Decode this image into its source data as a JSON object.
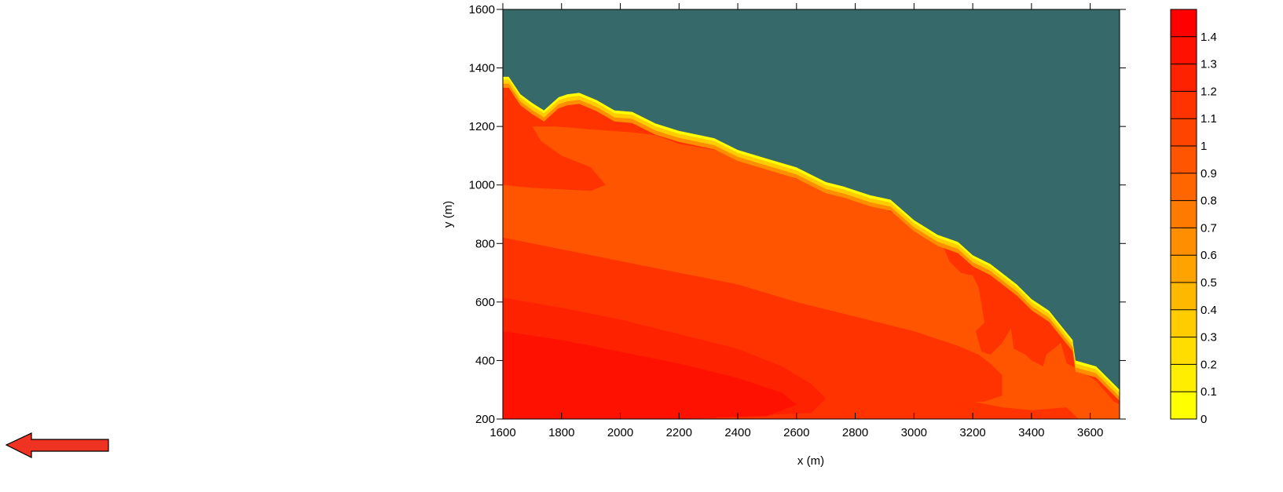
{
  "chart_data": {
    "type": "heatmap",
    "title": "",
    "xlabel": "x (m)",
    "ylabel": "y (m)",
    "xlim": [
      1600,
      3700
    ],
    "ylim": [
      200,
      1600
    ],
    "x_ticks": [
      1600,
      1800,
      2000,
      2200,
      2400,
      2600,
      2800,
      3000,
      3200,
      3400,
      3600
    ],
    "y_ticks": [
      200,
      400,
      600,
      800,
      1000,
      1200,
      1400,
      1600
    ],
    "land_color": "#35696a",
    "colorbar": {
      "min": 0,
      "max": 1.5,
      "levels": [
        0,
        0.1,
        0.2,
        0.3,
        0.4,
        0.5,
        0.6,
        0.7,
        0.8,
        0.9,
        1,
        1.1,
        1.2,
        1.3,
        1.4
      ],
      "tick_labels": [
        "0",
        "0.1",
        "0.2",
        "0.3",
        "0.4",
        "0.5",
        "0.6",
        "0.7",
        "0.8",
        "0.9",
        "1",
        "1.1",
        "1.2",
        "1.3",
        "1.4"
      ],
      "colors": [
        "#ffff00",
        "#ffee00",
        "#ffdd00",
        "#ffcc00",
        "#ffb800",
        "#ffa300",
        "#ff8e00",
        "#ff7a00",
        "#ff6600",
        "#ff5500",
        "#ff4400",
        "#ff3300",
        "#ff2200",
        "#ff1100",
        "#ff0000"
      ]
    },
    "shoreline": [
      [
        1600,
        1370
      ],
      [
        1620,
        1370
      ],
      [
        1660,
        1310
      ],
      [
        1700,
        1280
      ],
      [
        1740,
        1255
      ],
      [
        1790,
        1300
      ],
      [
        1820,
        1310
      ],
      [
        1860,
        1315
      ],
      [
        1920,
        1290
      ],
      [
        1980,
        1255
      ],
      [
        2040,
        1250
      ],
      [
        2120,
        1210
      ],
      [
        2200,
        1185
      ],
      [
        2320,
        1160
      ],
      [
        2400,
        1120
      ],
      [
        2500,
        1090
      ],
      [
        2600,
        1060
      ],
      [
        2700,
        1010
      ],
      [
        2760,
        995
      ],
      [
        2850,
        965
      ],
      [
        2920,
        950
      ],
      [
        3000,
        880
      ],
      [
        3080,
        830
      ],
      [
        3150,
        805
      ],
      [
        3200,
        760
      ],
      [
        3260,
        730
      ],
      [
        3350,
        660
      ],
      [
        3400,
        610
      ],
      [
        3460,
        570
      ],
      [
        3500,
        520
      ],
      [
        3540,
        470
      ],
      [
        3550,
        400
      ],
      [
        3620,
        380
      ],
      [
        3700,
        300
      ],
      [
        3700,
        1600
      ],
      [
        1600,
        1600
      ]
    ],
    "contours": [
      {
        "level": 0.9,
        "points": [
          [
            1600,
            1000
          ],
          [
            1700,
            990
          ],
          [
            1900,
            980
          ],
          [
            1950,
            1000
          ],
          [
            1900,
            1060
          ],
          [
            1800,
            1100
          ],
          [
            1730,
            1150
          ],
          [
            1700,
            1200
          ],
          [
            1780,
            1200
          ],
          [
            1900,
            1190
          ],
          [
            2040,
            1180
          ],
          [
            2120,
            1170
          ],
          [
            2200,
            1140
          ],
          [
            2320,
            1120
          ],
          [
            2400,
            1090
          ],
          [
            2500,
            1060
          ],
          [
            2600,
            1020
          ],
          [
            2700,
            985
          ],
          [
            2800,
            950
          ],
          [
            2900,
            920
          ],
          [
            3000,
            860
          ],
          [
            3050,
            830
          ],
          [
            3100,
            790
          ],
          [
            3120,
            740
          ],
          [
            3160,
            700
          ],
          [
            3200,
            690
          ],
          [
            3220,
            650
          ],
          [
            3230,
            590
          ],
          [
            3240,
            530
          ],
          [
            3210,
            500
          ],
          [
            3230,
            430
          ],
          [
            3260,
            420
          ],
          [
            3300,
            460
          ],
          [
            3330,
            510
          ],
          [
            3340,
            440
          ],
          [
            3380,
            420
          ],
          [
            3400,
            400
          ],
          [
            3440,
            380
          ],
          [
            3450,
            420
          ],
          [
            3500,
            460
          ],
          [
            3520,
            390
          ],
          [
            3560,
            370
          ],
          [
            3620,
            330
          ],
          [
            3680,
            260
          ],
          [
            3700,
            250
          ],
          [
            3700,
            200
          ],
          [
            3560,
            200
          ],
          [
            3520,
            240
          ],
          [
            3400,
            230
          ],
          [
            3300,
            240
          ],
          [
            3200,
            260
          ],
          [
            3000,
            250
          ],
          [
            2800,
            230
          ],
          [
            2600,
            220
          ],
          [
            1600,
            220
          ]
        ]
      },
      {
        "level": 1.1,
        "points": [
          [
            1600,
            820
          ],
          [
            1700,
            800
          ],
          [
            1800,
            780
          ],
          [
            2000,
            740
          ],
          [
            2200,
            700
          ],
          [
            2400,
            660
          ],
          [
            2600,
            600
          ],
          [
            2800,
            550
          ],
          [
            3000,
            500
          ],
          [
            3150,
            450
          ],
          [
            3220,
            420
          ],
          [
            3260,
            390
          ],
          [
            3300,
            350
          ],
          [
            3300,
            280
          ],
          [
            3240,
            260
          ],
          [
            3000,
            250
          ],
          [
            2800,
            230
          ],
          [
            2600,
            220
          ],
          [
            1600,
            220
          ]
        ]
      },
      {
        "level": 1.2,
        "points": [
          [
            1600,
            615
          ],
          [
            1800,
            580
          ],
          [
            2000,
            540
          ],
          [
            2200,
            490
          ],
          [
            2400,
            440
          ],
          [
            2550,
            380
          ],
          [
            2650,
            320
          ],
          [
            2700,
            270
          ],
          [
            2650,
            220
          ],
          [
            2400,
            210
          ],
          [
            2000,
            200
          ],
          [
            1600,
            200
          ]
        ]
      },
      {
        "level": 1.3,
        "points": [
          [
            1600,
            500
          ],
          [
            1800,
            470
          ],
          [
            2000,
            430
          ],
          [
            2200,
            390
          ],
          [
            2400,
            340
          ],
          [
            2550,
            290
          ],
          [
            2600,
            250
          ],
          [
            2500,
            210
          ],
          [
            2200,
            200
          ],
          [
            1600,
            200
          ]
        ]
      }
    ],
    "annotation_arrow": {
      "direction": "left",
      "color": "#ee3322"
    }
  }
}
